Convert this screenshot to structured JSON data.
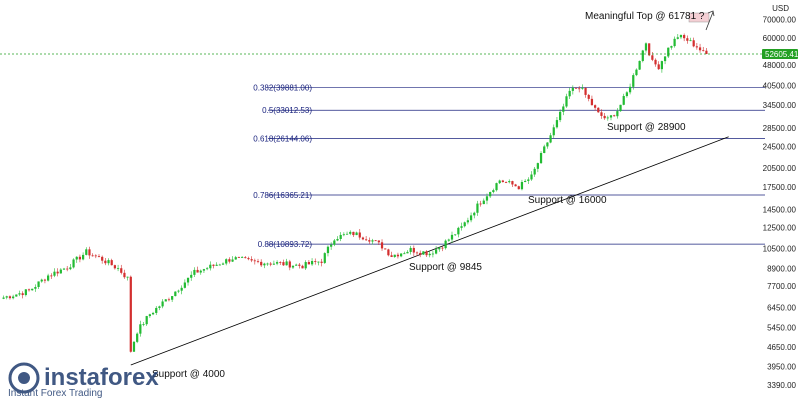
{
  "chart_data": {
    "type": "candlestick",
    "currency_label": "USD",
    "y_scale": "log",
    "ylim": [
      3200,
      77000
    ],
    "y_ticks": [
      "70000.00",
      "60000.00",
      "48000.00",
      "40500.00",
      "34500.00",
      "28500.00",
      "24500.00",
      "20500.00",
      "17500.00",
      "14500.00",
      "12500.00",
      "10500.00",
      "8900.00",
      "7700.00",
      "6450.00",
      "5450.00",
      "4650.00",
      "3950.00",
      "3390.00"
    ],
    "last_price_label": "52605.41",
    "last_price": 52605.41,
    "fib_levels": [
      {
        "label": "0.382(39881.00)",
        "value": 39881.0
      },
      {
        "label": "0.5(33012.53)",
        "value": 33012.53
      },
      {
        "label": "0.618(26144.06)",
        "value": 26144.06
      },
      {
        "label": "0.786(16365.21)",
        "value": 16365.21
      },
      {
        "label": "0.88(10893.72)",
        "value": 10893.72
      }
    ],
    "trendline": {
      "from": {
        "index": 40,
        "value": 4000
      },
      "to": {
        "index": 228,
        "value": 26500
      }
    },
    "annotations": {
      "top": "Meaningful Top @ 61781 ?",
      "support_28900": "Support @ 28900",
      "support_16000": "Support @ 16000",
      "support_9845": "Support @ 9845",
      "support_4000": "Support @ 4000"
    },
    "anchors": [
      [
        0,
        7000
      ],
      [
        8,
        7400
      ],
      [
        14,
        8400
      ],
      [
        20,
        9000
      ],
      [
        26,
        10200
      ],
      [
        31,
        9600
      ],
      [
        36,
        8900
      ],
      [
        39,
        8200
      ],
      [
        40,
        4500
      ],
      [
        42,
        5300
      ],
      [
        46,
        6100
      ],
      [
        52,
        7000
      ],
      [
        60,
        8600
      ],
      [
        68,
        9300
      ],
      [
        72,
        9700
      ],
      [
        78,
        9400
      ],
      [
        86,
        9300
      ],
      [
        94,
        9100
      ],
      [
        100,
        9500
      ],
      [
        104,
        11500
      ],
      [
        110,
        11900
      ],
      [
        115,
        11400
      ],
      [
        119,
        10700
      ],
      [
        122,
        9900
      ],
      [
        128,
        10400
      ],
      [
        134,
        10100
      ],
      [
        138,
        10800
      ],
      [
        144,
        12500
      ],
      [
        150,
        15500
      ],
      [
        156,
        18500
      ],
      [
        162,
        17500
      ],
      [
        166,
        19000
      ],
      [
        170,
        24000
      ],
      [
        174,
        30000
      ],
      [
        178,
        38500
      ],
      [
        181,
        40300
      ],
      [
        184,
        36000
      ],
      [
        187,
        32000
      ],
      [
        190,
        30500
      ],
      [
        193,
        33000
      ],
      [
        196,
        38000
      ],
      [
        199,
        47000
      ],
      [
        202,
        58000
      ],
      [
        204,
        49000
      ],
      [
        206,
        47500
      ],
      [
        209,
        55000
      ],
      [
        212,
        61000
      ],
      [
        215,
        59000
      ],
      [
        218,
        56000
      ],
      [
        220,
        53000
      ],
      [
        221,
        52605.41
      ]
    ]
  },
  "branding": {
    "name": "instaforex",
    "tagline": "Instant Forex Trading"
  },
  "colors": {
    "up": "#22bb33",
    "down": "#d32f2f",
    "fib": "#1a237e",
    "price_line": "#23a023",
    "trend": "#000000",
    "box": "#f4cfd4"
  }
}
